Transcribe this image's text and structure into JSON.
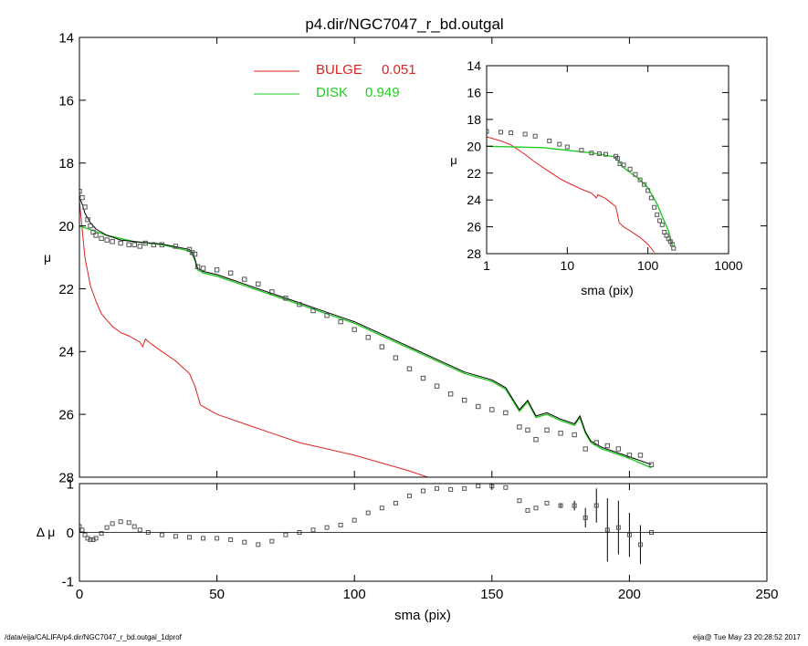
{
  "title": "p4.dir/NGC7047_r_bd.outgal",
  "footer": {
    "left": "/data/eija/CALIFA/p4.dir/NGC7047_r_bd.outgal_1dprof",
    "right": "eija@  Tue May 23 20:28:52 2017"
  },
  "legend": {
    "bulge_label": "BULGE",
    "bulge_value": "0.051",
    "disk_label": "DISK",
    "disk_value": "0.949"
  },
  "colors": {
    "bulge": "#dd2222",
    "disk": "#22cc22",
    "data": "#555555",
    "model": "#000000"
  },
  "chart_data": [
    {
      "type": "line",
      "panel": "main",
      "xlabel": "",
      "ylabel": "μ",
      "xlim": [
        0,
        250
      ],
      "ylim": [
        28,
        14
      ],
      "yticks": [
        14,
        16,
        18,
        20,
        22,
        24,
        26,
        28
      ],
      "series": [
        {
          "name": "BULGE",
          "role": "bulge",
          "x": [
            0,
            1,
            2,
            4,
            6,
            8,
            10,
            12,
            15,
            18,
            20,
            22,
            23,
            24,
            26,
            30,
            35,
            40,
            42,
            43,
            44,
            46,
            50,
            60,
            70,
            80,
            100,
            120,
            130
          ],
          "y": [
            19.2,
            20.1,
            21.0,
            21.9,
            22.4,
            22.8,
            23.0,
            23.2,
            23.4,
            23.5,
            23.6,
            23.7,
            23.85,
            23.6,
            23.75,
            24.0,
            24.3,
            24.7,
            25.1,
            25.4,
            25.7,
            25.8,
            26.0,
            26.3,
            26.6,
            26.9,
            27.3,
            27.8,
            28.1
          ]
        },
        {
          "name": "DISK",
          "role": "disk",
          "x": [
            0,
            10,
            20,
            30,
            40,
            41,
            42,
            43,
            45,
            50,
            60,
            70,
            80,
            90,
            100,
            110,
            120,
            130,
            140,
            150,
            155,
            160,
            163,
            166,
            170,
            175,
            180,
            182,
            184,
            186,
            190,
            200,
            208
          ],
          "y": [
            20.0,
            20.3,
            20.5,
            20.6,
            20.8,
            20.9,
            21.1,
            21.4,
            21.5,
            21.6,
            21.9,
            22.2,
            22.5,
            22.8,
            23.1,
            23.5,
            23.9,
            24.3,
            24.7,
            24.95,
            25.2,
            25.9,
            25.6,
            26.1,
            26.0,
            26.2,
            26.35,
            26.1,
            26.6,
            26.9,
            27.1,
            27.4,
            27.7
          ]
        },
        {
          "name": "model",
          "role": "model",
          "x": [
            0,
            1,
            2,
            4,
            6,
            8,
            10,
            15,
            20,
            30,
            40,
            41,
            42,
            43,
            45,
            50,
            60,
            70,
            80,
            90,
            100,
            110,
            120,
            130,
            140,
            150,
            155,
            160,
            163,
            166,
            170,
            175,
            180,
            182,
            184,
            186,
            190,
            200,
            208
          ],
          "y": [
            19.1,
            19.3,
            19.6,
            19.9,
            20.1,
            20.2,
            20.3,
            20.45,
            20.5,
            20.58,
            20.75,
            20.85,
            21.05,
            21.35,
            21.45,
            21.55,
            21.85,
            22.15,
            22.45,
            22.75,
            23.05,
            23.45,
            23.85,
            24.25,
            24.65,
            24.9,
            25.15,
            25.85,
            25.55,
            26.05,
            25.95,
            26.15,
            26.3,
            26.05,
            26.55,
            26.85,
            27.05,
            27.35,
            27.6
          ]
        },
        {
          "name": "data",
          "role": "data",
          "x": [
            0,
            1,
            2,
            3,
            4,
            5,
            6,
            8,
            10,
            12,
            15,
            18,
            20,
            22,
            24,
            27,
            30,
            35,
            40,
            41,
            42,
            43,
            45,
            50,
            55,
            60,
            65,
            70,
            75,
            80,
            85,
            90,
            95,
            100,
            105,
            110,
            115,
            120,
            125,
            130,
            135,
            140,
            145,
            150,
            155,
            160,
            163,
            166,
            170,
            175,
            180,
            184,
            188,
            192,
            196,
            200,
            204,
            208
          ],
          "y": [
            18.9,
            19.1,
            19.4,
            19.8,
            20.0,
            20.2,
            20.3,
            20.4,
            20.45,
            20.5,
            20.55,
            20.6,
            20.6,
            20.65,
            20.55,
            20.6,
            20.6,
            20.65,
            20.75,
            20.85,
            20.9,
            21.3,
            21.35,
            21.4,
            21.5,
            21.7,
            21.85,
            22.1,
            22.3,
            22.5,
            22.7,
            22.85,
            23.05,
            23.3,
            23.55,
            23.85,
            24.2,
            24.55,
            24.85,
            25.1,
            25.35,
            25.55,
            25.75,
            25.85,
            25.95,
            26.4,
            26.5,
            26.8,
            26.5,
            26.6,
            26.65,
            27.1,
            26.9,
            27.0,
            27.1,
            27.3,
            27.3,
            27.6
          ]
        }
      ]
    },
    {
      "type": "scatter",
      "panel": "residual",
      "xlabel": "sma (pix)",
      "ylabel": "Δ μ",
      "xlim": [
        0,
        250
      ],
      "ylim": [
        -1,
        1
      ],
      "xticks": [
        0,
        50,
        100,
        150,
        200,
        250
      ],
      "yticks": [
        -1,
        0,
        1
      ],
      "series": [
        {
          "name": "residual",
          "x": [
            0,
            1,
            2,
            3,
            4,
            5,
            6,
            8,
            10,
            12,
            15,
            18,
            20,
            22,
            25,
            30,
            35,
            40,
            45,
            50,
            55,
            60,
            65,
            70,
            75,
            80,
            85,
            90,
            95,
            100,
            105,
            110,
            115,
            120,
            125,
            130,
            135,
            140,
            145,
            150,
            155,
            160,
            163,
            166,
            170,
            175,
            180,
            184,
            188,
            192,
            196,
            200,
            204,
            208
          ],
          "y": [
            0.12,
            0.05,
            -0.05,
            -0.12,
            -0.15,
            -0.15,
            -0.12,
            -0.02,
            0.1,
            0.18,
            0.22,
            0.2,
            0.12,
            0.05,
            0.0,
            -0.05,
            -0.08,
            -0.1,
            -0.12,
            -0.12,
            -0.15,
            -0.2,
            -0.25,
            -0.18,
            -0.05,
            0.0,
            0.05,
            0.1,
            0.15,
            0.25,
            0.4,
            0.5,
            0.6,
            0.75,
            0.85,
            0.9,
            0.88,
            0.9,
            0.95,
            0.95,
            0.92,
            0.65,
            0.45,
            0.5,
            0.6,
            0.55,
            0.55,
            0.3,
            0.55,
            0.05,
            0.1,
            -0.05,
            -0.25,
            0.0
          ],
          "err": [
            0,
            0,
            0,
            0,
            0,
            0,
            0,
            0,
            0,
            0,
            0,
            0,
            0,
            0,
            0,
            0,
            0,
            0,
            0,
            0,
            0,
            0,
            0,
            0,
            0,
            0,
            0,
            0,
            0,
            0,
            0,
            0,
            0,
            0,
            0,
            0,
            0,
            0,
            0,
            0,
            0,
            0,
            0,
            0,
            0,
            0.05,
            0.1,
            0.2,
            0.35,
            0.65,
            0.55,
            0.45,
            0.4,
            0
          ]
        }
      ]
    },
    {
      "type": "line",
      "panel": "inset",
      "xlabel": "sma (pix)",
      "ylabel": "μ",
      "xscale": "log",
      "xlim": [
        1,
        1000
      ],
      "ylim": [
        28,
        14
      ],
      "xticks": [
        1,
        10,
        100,
        1000
      ],
      "yticks": [
        14,
        16,
        18,
        20,
        22,
        24,
        26,
        28
      ],
      "series": [
        {
          "name": "BULGE",
          "role": "bulge",
          "x": [
            1,
            1.5,
            2,
            3,
            4,
            6,
            8,
            10,
            15,
            20,
            23,
            24,
            30,
            40,
            42,
            44,
            50,
            60,
            80,
            100,
            120
          ],
          "y": [
            19.3,
            19.6,
            19.9,
            20.6,
            21.2,
            21.9,
            22.4,
            22.7,
            23.2,
            23.5,
            23.85,
            23.6,
            23.9,
            24.5,
            25.1,
            25.7,
            26.0,
            26.3,
            26.8,
            27.3,
            27.9
          ]
        },
        {
          "name": "DISK",
          "role": "disk",
          "x": [
            1,
            5,
            10,
            20,
            40,
            42,
            50,
            80,
            100,
            130,
            160,
            180,
            200
          ],
          "y": [
            20.0,
            20.1,
            20.3,
            20.5,
            20.8,
            21.0,
            21.6,
            22.5,
            23.1,
            24.3,
            25.6,
            26.3,
            27.4
          ]
        },
        {
          "name": "data",
          "role": "data",
          "x": [
            1,
            1.5,
            2,
            3,
            4,
            6,
            8,
            10,
            15,
            20,
            25,
            30,
            40,
            42,
            45,
            50,
            60,
            70,
            80,
            90,
            100,
            110,
            120,
            130,
            140,
            150,
            160,
            170,
            180,
            190,
            200,
            208
          ],
          "y": [
            18.9,
            18.95,
            19.0,
            19.1,
            19.25,
            19.6,
            19.85,
            20.05,
            20.3,
            20.5,
            20.55,
            20.6,
            20.75,
            20.9,
            21.3,
            21.4,
            21.7,
            22.1,
            22.5,
            22.85,
            23.3,
            23.85,
            24.55,
            25.1,
            25.55,
            25.85,
            26.4,
            26.65,
            26.9,
            27.1,
            27.3,
            27.6
          ]
        }
      ]
    }
  ]
}
